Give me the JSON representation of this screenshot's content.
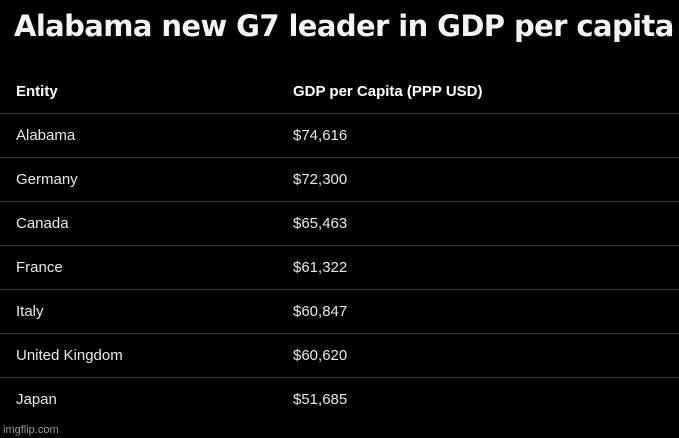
{
  "title": "Alabama new G7 leader in GDP per capita",
  "table": {
    "headers": {
      "entity": "Entity",
      "value": "GDP per Capita (PPP USD)"
    },
    "rows": [
      {
        "entity": "Alabama",
        "value": "$74,616"
      },
      {
        "entity": "Germany",
        "value": "$72,300"
      },
      {
        "entity": "Canada",
        "value": "$65,463"
      },
      {
        "entity": "France",
        "value": "$61,322"
      },
      {
        "entity": "Italy",
        "value": "$60,847"
      },
      {
        "entity": "United Kingdom",
        "value": "$60,620"
      },
      {
        "entity": "Japan",
        "value": "$51,685"
      }
    ]
  },
  "watermark": "imgflip.com"
}
